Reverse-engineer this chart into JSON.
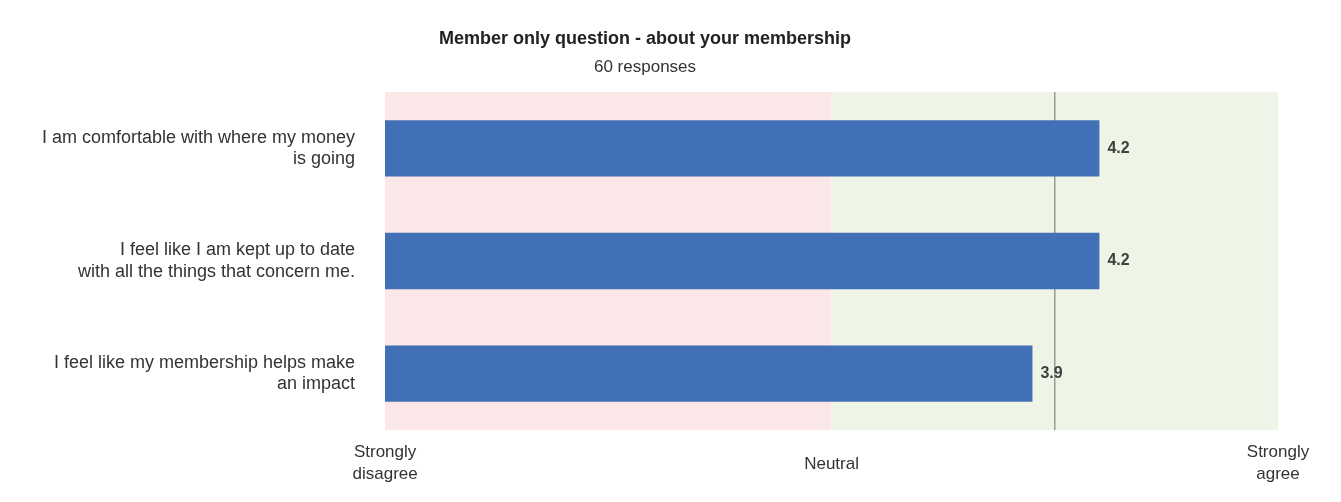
{
  "chart_data": {
    "type": "bar",
    "orientation": "horizontal",
    "title": "Member only question - about your membership",
    "subtitle": "60 responses",
    "categories": [
      "I am comfortable with where my money is going",
      "I feel like I am kept up to date with all the things that concern me.",
      "I feel like my membership helps make an impact"
    ],
    "values": [
      4.2,
      4.2,
      3.9
    ],
    "color": "#4270b6",
    "data_labels": true,
    "xlim": [
      1,
      5
    ],
    "annotations": [
      "Strongly disagree",
      "Neutral",
      "Strongly agree"
    ],
    "bands": [
      {
        "axis": "x",
        "from": 1,
        "to": 3,
        "color": "#fbe6e8"
      },
      {
        "axis": "x",
        "from": 3,
        "to": 5,
        "color": "#eef4e6"
      }
    ],
    "ref_lines": [
      {
        "axis": "x",
        "value": 4,
        "color": "#9a9a9a"
      }
    ],
    "grid": false,
    "legend": false
  }
}
